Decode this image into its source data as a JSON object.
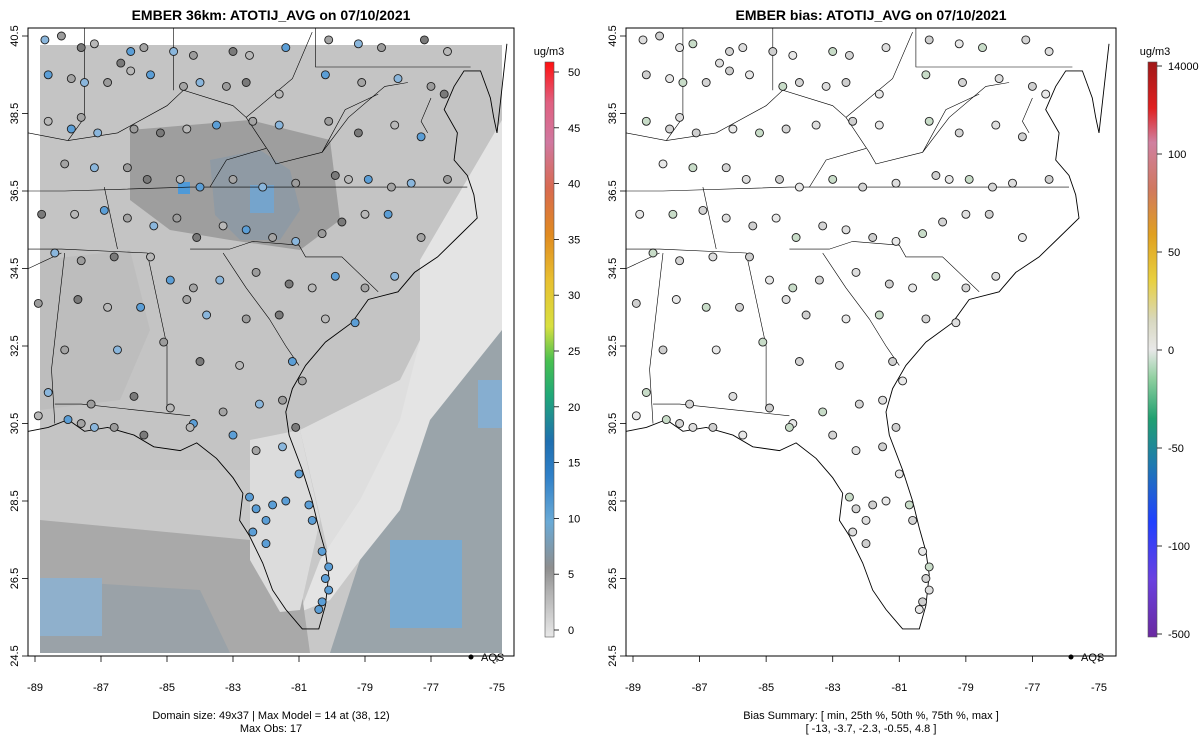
{
  "panels": [
    {
      "title": "EMBER 36km: ATOTIJ_AVG on 07/10/2021",
      "footer_line1": "Domain size: 49x37 | Max Model = 14 at (38, 12)",
      "footer_line2": "Max Obs: 17",
      "legend_label": "AQS"
    },
    {
      "title": "EMBER bias: ATOTIJ_AVG on 07/10/2021",
      "footer_line1": "Bias Summary: [ min, 25th %, 50th %, 75th %, max ]",
      "footer_line2": "[ -13,   -3.7,   -2.3,   -0.55,   4.8 ]",
      "legend_label": "AQS"
    }
  ],
  "colorbars": [
    {
      "unit": "ug/m3",
      "ticks": [
        "0",
        "5",
        "10",
        "15",
        "20",
        "25",
        "30",
        "35",
        "40",
        "45",
        "50"
      ]
    },
    {
      "unit": "ug/m3",
      "ticks": [
        "14000",
        "100",
        "50",
        "0",
        "-50",
        "-100",
        "-500"
      ]
    }
  ],
  "chart_data": [
    {
      "type": "map",
      "title": "EMBER 36km: ATOTIJ_AVG on 07/10/2021",
      "xlabel": "",
      "ylabel": "",
      "xlim": [
        -89.2,
        -74.6
      ],
      "ylim": [
        24.3,
        40.8
      ],
      "x_ticks": [
        -89,
        -87,
        -85,
        -83,
        -81,
        -79,
        -77,
        -75
      ],
      "y_ticks": [
        40.5,
        38.5,
        36.5,
        34.5,
        32.5,
        30.5,
        28.5,
        26.5,
        24.5
      ],
      "colorbar_unit": "ug/m3",
      "colorbar_range": [
        0,
        50
      ],
      "domain_size": "49x37",
      "max_model": 14,
      "max_model_cell": [
        38,
        12
      ],
      "max_obs": 17,
      "obs_network": "AQS"
    },
    {
      "type": "map",
      "title": "EMBER bias: ATOTIJ_AVG on 07/10/2021",
      "xlabel": "",
      "ylabel": "",
      "xlim": [
        -89.2,
        -74.6
      ],
      "ylim": [
        24.3,
        40.8
      ],
      "x_ticks": [
        -89,
        -87,
        -85,
        -83,
        -81,
        -79,
        -77,
        -75
      ],
      "y_ticks": [
        40.5,
        38.5,
        36.5,
        34.5,
        32.5,
        30.5,
        28.5,
        26.5,
        24.5
      ],
      "colorbar_unit": "ug/m3",
      "bias_summary": {
        "min": -13,
        "p25": -3.7,
        "p50": -2.3,
        "p75": -0.55,
        "max": 4.8
      },
      "obs_network": "AQS"
    }
  ],
  "stations": [
    [
      -88.7,
      40.4
    ],
    [
      -88.2,
      40.5
    ],
    [
      -87.6,
      40.2
    ],
    [
      -87.2,
      40.3
    ],
    [
      -86.1,
      40.1
    ],
    [
      -85.7,
      40.2
    ],
    [
      -84.8,
      40.1
    ],
    [
      -84.2,
      40.0
    ],
    [
      -83.0,
      40.1
    ],
    [
      -82.5,
      40.0
    ],
    [
      -81.4,
      40.2
    ],
    [
      -80.1,
      40.4
    ],
    [
      -79.2,
      40.3
    ],
    [
      -78.5,
      40.2
    ],
    [
      -77.2,
      40.4
    ],
    [
      -76.5,
      40.1
    ],
    [
      -88.6,
      39.5
    ],
    [
      -87.9,
      39.4
    ],
    [
      -87.5,
      39.3
    ],
    [
      -86.8,
      39.3
    ],
    [
      -86.4,
      39.8
    ],
    [
      -86.1,
      39.6
    ],
    [
      -85.5,
      39.5
    ],
    [
      -84.5,
      39.2
    ],
    [
      -84.0,
      39.3
    ],
    [
      -83.2,
      39.2
    ],
    [
      -82.6,
      39.3
    ],
    [
      -81.6,
      39.0
    ],
    [
      -80.2,
      39.5
    ],
    [
      -79.1,
      39.3
    ],
    [
      -78.0,
      39.4
    ],
    [
      -77.0,
      39.2
    ],
    [
      -76.6,
      39.0
    ],
    [
      -88.6,
      38.3
    ],
    [
      -87.9,
      38.1
    ],
    [
      -87.6,
      38.4
    ],
    [
      -87.1,
      38.0
    ],
    [
      -86.0,
      38.1
    ],
    [
      -85.2,
      38.0
    ],
    [
      -84.4,
      38.1
    ],
    [
      -83.5,
      38.2
    ],
    [
      -82.4,
      38.3
    ],
    [
      -81.6,
      38.2
    ],
    [
      -80.1,
      38.3
    ],
    [
      -79.2,
      38.0
    ],
    [
      -78.1,
      38.2
    ],
    [
      -77.3,
      37.9
    ],
    [
      -88.1,
      37.2
    ],
    [
      -87.2,
      37.1
    ],
    [
      -86.2,
      37.1
    ],
    [
      -85.6,
      36.8
    ],
    [
      -84.6,
      36.8
    ],
    [
      -84.0,
      36.6
    ],
    [
      -83.0,
      36.8
    ],
    [
      -82.1,
      36.6
    ],
    [
      -81.1,
      36.7
    ],
    [
      -79.9,
      36.9
    ],
    [
      -79.5,
      36.8
    ],
    [
      -78.9,
      36.8
    ],
    [
      -78.2,
      36.6
    ],
    [
      -77.6,
      36.7
    ],
    [
      -76.5,
      36.8
    ],
    [
      -88.8,
      35.9
    ],
    [
      -87.8,
      35.9
    ],
    [
      -86.9,
      36.0
    ],
    [
      -86.2,
      35.8
    ],
    [
      -85.4,
      35.6
    ],
    [
      -84.7,
      35.8
    ],
    [
      -84.1,
      35.3
    ],
    [
      -83.3,
      35.6
    ],
    [
      -82.6,
      35.5
    ],
    [
      -81.8,
      35.3
    ],
    [
      -81.1,
      35.2
    ],
    [
      -80.3,
      35.4
    ],
    [
      -79.7,
      35.7
    ],
    [
      -79.0,
      35.9
    ],
    [
      -78.3,
      35.9
    ],
    [
      -77.3,
      35.3
    ],
    [
      -88.4,
      34.9
    ],
    [
      -87.6,
      34.7
    ],
    [
      -86.6,
      34.8
    ],
    [
      -85.5,
      34.8
    ],
    [
      -84.9,
      34.2
    ],
    [
      -84.2,
      34.0
    ],
    [
      -83.4,
      34.2
    ],
    [
      -82.3,
      34.4
    ],
    [
      -81.3,
      34.1
    ],
    [
      -80.6,
      34.0
    ],
    [
      -79.9,
      34.3
    ],
    [
      -79.0,
      34.0
    ],
    [
      -78.1,
      34.3
    ],
    [
      -88.9,
      33.6
    ],
    [
      -87.7,
      33.7
    ],
    [
      -86.8,
      33.5
    ],
    [
      -85.8,
      33.5
    ],
    [
      -84.4,
      33.7
    ],
    [
      -83.8,
      33.3
    ],
    [
      -82.6,
      33.2
    ],
    [
      -81.6,
      33.3
    ],
    [
      -80.2,
      33.2
    ],
    [
      -79.3,
      33.1
    ],
    [
      -88.1,
      32.4
    ],
    [
      -86.5,
      32.4
    ],
    [
      -85.1,
      32.6
    ],
    [
      -84.0,
      32.1
    ],
    [
      -82.8,
      32.0
    ],
    [
      -81.2,
      32.1
    ],
    [
      -80.9,
      31.6
    ],
    [
      -88.6,
      31.3
    ],
    [
      -87.3,
      31.0
    ],
    [
      -86.0,
      31.2
    ],
    [
      -84.9,
      30.9
    ],
    [
      -84.2,
      30.5
    ],
    [
      -83.3,
      30.8
    ],
    [
      -82.2,
      31.0
    ],
    [
      -81.5,
      31.1
    ],
    [
      -81.1,
      30.4
    ],
    [
      -88.9,
      30.7
    ],
    [
      -88.0,
      30.6
    ],
    [
      -87.6,
      30.5
    ],
    [
      -87.2,
      30.4
    ],
    [
      -86.6,
      30.4
    ],
    [
      -85.7,
      30.2
    ],
    [
      -84.3,
      30.4
    ],
    [
      -83.0,
      30.2
    ],
    [
      -82.3,
      29.8
    ],
    [
      -81.5,
      29.9
    ],
    [
      -81.0,
      29.2
    ],
    [
      -82.5,
      28.6
    ],
    [
      -82.3,
      28.3
    ],
    [
      -82.0,
      28.0
    ],
    [
      -81.8,
      28.4
    ],
    [
      -81.4,
      28.5
    ],
    [
      -80.7,
      28.4
    ],
    [
      -80.6,
      28.0
    ],
    [
      -82.4,
      27.7
    ],
    [
      -82.0,
      27.4
    ],
    [
      -80.3,
      27.2
    ],
    [
      -80.1,
      26.8
    ],
    [
      -80.2,
      26.5
    ],
    [
      -80.1,
      26.2
    ],
    [
      -80.3,
      25.9
    ],
    [
      -80.4,
      25.7
    ]
  ]
}
